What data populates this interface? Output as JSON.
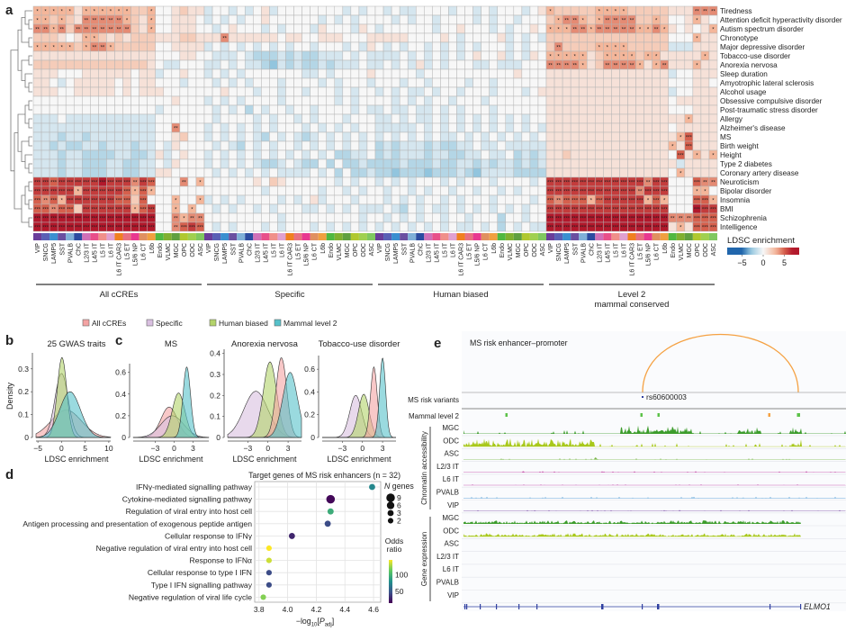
{
  "panel_labels": {
    "a": "a",
    "b": "b",
    "c": "c",
    "d": "d",
    "e": "e"
  },
  "chart_data": [
    {
      "type": "heatmap",
      "legend_title": "LDSC enrichment",
      "legend_ticks": [
        -5,
        0,
        5
      ],
      "scale_colors": {
        "neg_max": "#2166ac",
        "neg_mid": "#92c5de",
        "zero": "#f7f7f7",
        "pos_mid": "#f4b69a",
        "pos_hi": "#d6604d",
        "pos_max": "#b2182b"
      },
      "encoding": {
        "a": -3,
        "b": -2,
        "c": -1
      },
      "star_rule": {
        "3": "*",
        "4": "**",
        "5": "***"
      },
      "columns": [
        "VIP",
        "SNCG",
        "LAMP5",
        "SST",
        "PVALB",
        "ChC",
        "L2/3 IT",
        "L4/5 IT",
        "L5 IT",
        "L6 IT",
        "L6 IT CAR3",
        "L5 ET",
        "L5/6 NP",
        "L6 CT",
        "L6b",
        "Endo",
        "VLMC",
        "MGC",
        "OPC",
        "ODC",
        "ASC"
      ],
      "cell_type_colors": [
        "#6a3d9a",
        "#5a5fb5",
        "#3a8fd0",
        "#6a4fa0",
        "#7fb0d8",
        "#2b4ba0",
        "#d070b8",
        "#e8508a",
        "#f0908a",
        "#e0a0d0",
        "#f08020",
        "#e87080",
        "#e83890",
        "#e09060",
        "#f0a040",
        "#50b840",
        "#80b030",
        "#60a040",
        "#b0c830",
        "#a0d050",
        "#80c860"
      ],
      "groups": [
        {
          "label": "All cCREs",
          "sublabel": ""
        },
        {
          "label": "Specific",
          "sublabel": ""
        },
        {
          "label": "Human biased",
          "sublabel": ""
        },
        {
          "label": "Level 2",
          "sublabel": "mammal conserved"
        }
      ],
      "rows": [
        "Tiredness",
        "Attention deficit hyperactivity disorder",
        "Autism spectrum disorder",
        "Chronotype",
        "Major depressive disorder",
        "Tobacco-use disorder",
        "Anorexia nervosa",
        "Sleep duration",
        "Amyotrophic lateral sclerosis",
        "Alcohol usage",
        "Obsessive compulsive disorder",
        "Post-traumatic stress disorder",
        "Allergy",
        "Alzheimer's disease",
        "MS",
        "Birth weight",
        "Height",
        "Type 2 diabetes",
        "Coronary artery disease",
        "Neuroticism",
        "Bipolar disorder",
        "Insomnia",
        "BMI",
        "Schizophrenia",
        "Intelligence"
      ],
      "values": [
        [
          "333331333333223001211",
          "c00c0c01c00000000c0c0",
          "0c0cc0000c00c0c000c01",
          "322222333322222111444"
        ],
        [
          "332321444443213001110",
          "c0c0c001000000c0c0c00",
          "00c0c00c0000c0c00c000",
          "234432344442232001310"
        ],
        [
          "443424444444213001110",
          "0c01000c0c000c1000c10",
          "c000000c001000c0c0010",
          "333443444443343101013"
        ],
        [
          "222101332121222111221",
          "114111111011001110001",
          "1111000010c00001c0c0c",
          "222222222222222000311"
        ],
        [
          "333332344322222001111",
          "c0c0c0c0c0c00c000c0c1",
          "0c0c00c0c0c0c000c0c00",
          "242222333322222ccc111"
        ],
        [
          "111111111111111000110",
          "0ccc0cbbbcbcbbccc0c0c",
          "ccc0c0c0c0c01001c0c10",
          "333331233332331111131"
        ],
        [
          "2222222222222210cc000",
          "cc0c0ccbacbcbbcbccc0c",
          "c0c0c1c0c000cc0ccc000",
          "444431244443134111311"
        ],
        [
          "111000111111011c00100",
          "c0c0c0000000cc0c00001",
          "00000c000000000001000",
          "111111111111111c00111"
        ],
        [
          "110c01111101011000c00",
          "0c0c0c000c0000c0c000c",
          "000c00c0000c00c000000",
          "111111111111111000110"
        ],
        [
          "111001111101011100000",
          "001000c00c00c000c0c00",
          "c0c0cc0c00c000c000c01",
          "111111111111111c00111"
        ],
        [
          "000000000000000001000",
          "c0c0c0000c000000c0c00",
          "00c0c0c00c000c0000000",
          "111111111111111011111"
        ],
        [
          "000000000000000c00000",
          "0c0c0b0c00c00c0000c0c",
          "c0cc0cc0c0c000c000000",
          "111111111111111000111"
        ],
        [
          "ccc0ccccccccccc000000",
          "0c0000c0c00c0c000c000",
          "cc0c0cc0c0c0c0c0c0c00",
          "111111111111111113111"
        ],
        [
          "ccccccccccccccc004000",
          "c0c0c0c0c000c0c0c0c00",
          "ccccc0c0c0c0c0c0c0c0c",
          "111111111111111011111"
        ],
        [
          "cccbccbcccccccc001200",
          "c0c0c0cb0c0cbc0c0c0c0",
          "c0c0c0c0cc0c0c0c0c0c0",
          "111111111111111135111"
        ],
        [
          "ccbcbbccbcccbcc0c1000",
          "0c0cb0c0c00c0c0c0c0c0",
          "bcbcccbcbbcc0cc0ccccc",
          "111111111111111315111"
        ],
        [
          "cccbccbbbbccbbc1c0100",
          "c0c0c0c0c0c0c0c0bbcc0",
          "bcbcccbccbbcc0cc0bcbc",
          "112111111111111051313"
        ],
        [
          "cccbccbbbccbbcc0c1000",
          "c0c0c0cbbc0cbb0b0bbcb",
          "bbbcbbbcbbccbcbccbcbc",
          "1111111111111111c1111"
        ],
        [
          "cccbccbbbccbbcc110000",
          "0c0c0c0c0cccc0c0b0bbc",
          "bbabbbabbbcbaccccbbbb",
          "111111111111111031111"
        ],
        [
          "665666667666465000403",
          "0000001021000000c0c00",
          "c0c0c000c0c000c0000c0",
          "666666666666466000544"
        ],
        [
          "666663666665353000000",
          "0000000c000000c00c0c0",
          "0c00c0c00c00c00c0c000",
          "666666666664666000330"
        ],
        [
          "545366666655250003003",
          "c0c0c0000c0c01c000c00",
          "0c0c0c00c0c000c0000c0",
          "545553566666353000553"
        ],
        [
          "554552666666356003030",
          "0c0c00c0c000cc0c0c0cc",
          "c0cb0c0cc0c0c0c0c0c00",
          "666666666666666000766"
        ],
        [
          "777777777777777004344",
          "000000000c000000000c0",
          "0c0c0c00c00c000b00c00",
          "777777777777777444555"
        ],
        [
          "777777777777777004565",
          "0c0c000c0c000c0c0c0c0",
          "c0c0c0c0c0cc0c0b0c0cc",
          "777777777777777131555"
        ]
      ]
    },
    {
      "type": "area",
      "subtype": "density",
      "title": "25 GWAS traits",
      "xlabel": "LDSC enrichment",
      "ylabel": "Density",
      "xlim": [
        -5.4,
        10.4
      ],
      "ylim": [
        0,
        0.37
      ],
      "xticks": [
        -5,
        0,
        5,
        10
      ],
      "yticks": [
        0,
        0.1,
        0.2,
        0.3
      ],
      "series": [
        {
          "name": "All cCREs",
          "mean": 1.0,
          "sd": 3.2,
          "peak": 0.12
        },
        {
          "name": "Specific",
          "mean": 0.0,
          "sd": 1.4,
          "peak": 0.28
        },
        {
          "name": "Human biased",
          "mean": 0.1,
          "sd": 1.0,
          "peak": 0.35
        },
        {
          "name": "Mammal level 2",
          "mean": 1.8,
          "sd": 2.2,
          "peak": 0.2
        }
      ]
    },
    {
      "type": "area",
      "subtype": "density",
      "title": "MS",
      "xlabel": "LDSC enrichment",
      "ylabel": "",
      "xlim": [
        -6.5,
        5.5
      ],
      "ylim": [
        0,
        0.68
      ],
      "xticks": [
        -3,
        0,
        3
      ],
      "yticks": [
        0,
        0.2,
        0.4,
        0.6
      ],
      "series": [
        {
          "name": "All cCREs",
          "mean": -0.8,
          "sd": 1.3,
          "peak": 0.28
        },
        {
          "name": "Specific",
          "mean": -0.3,
          "sd": 1.8,
          "peak": 0.2
        },
        {
          "name": "Human biased",
          "mean": 0.7,
          "sd": 1.0,
          "peak": 0.41
        },
        {
          "name": "Mammal level 2",
          "mean": 2.0,
          "sd": 0.6,
          "peak": 0.65
        }
      ]
    },
    {
      "type": "area",
      "subtype": "density",
      "title": "Anorexia nervosa",
      "xlabel": "LDSC enrichment",
      "ylabel": "",
      "xlim": [
        -6,
        5
      ],
      "ylim": [
        0,
        0.42
      ],
      "xticks": [
        -3,
        0,
        3
      ],
      "yticks": [
        0,
        0.1,
        0.2,
        0.3,
        0.4
      ],
      "series": [
        {
          "name": "Specific",
          "mean": -1.8,
          "sd": 1.8,
          "peak": 0.22
        },
        {
          "name": "Human biased",
          "mean": 0.3,
          "sd": 1.0,
          "peak": 0.36
        },
        {
          "name": "All cCREs",
          "mean": 2.0,
          "sd": 0.8,
          "peak": 0.38
        },
        {
          "name": "Mammal level 2",
          "mean": 3.3,
          "sd": 1.1,
          "peak": 0.31
        }
      ]
    },
    {
      "type": "area",
      "subtype": "density",
      "title": "Tobacco-use disorder",
      "xlabel": "LDSC enrichment",
      "ylabel": "",
      "xlim": [
        -6,
        5
      ],
      "ylim": [
        0,
        0.72
      ],
      "xticks": [
        -3,
        0,
        3
      ],
      "yticks": [
        0,
        0.2,
        0.4,
        0.6
      ],
      "series": [
        {
          "name": "Specific",
          "mean": -1.0,
          "sd": 0.9,
          "peak": 0.37
        },
        {
          "name": "Human biased",
          "mean": 0.2,
          "sd": 0.8,
          "peak": 0.38
        },
        {
          "name": "All cCREs",
          "mean": 1.7,
          "sd": 0.5,
          "peak": 0.62
        },
        {
          "name": "Mammal level 2",
          "mean": 3.0,
          "sd": 0.45,
          "peak": 0.7
        }
      ]
    },
    {
      "type": "scatter",
      "title": "Target genes of MS risk enhancers (n = 32)",
      "xlabel_parts": [
        "−log",
        "10",
        "[",
        "P",
        "adj",
        "]"
      ],
      "xlim": [
        3.77,
        4.65
      ],
      "xticks": [
        "3.8",
        "4.0",
        "4.2",
        "4.4",
        "4.6"
      ],
      "size_legend": {
        "title_italic": "N",
        "title": " genes",
        "values": [
          9,
          6,
          3,
          2
        ]
      },
      "color_legend": {
        "title": [
          "Odds",
          "ratio"
        ],
        "ticks": [
          100,
          50
        ],
        "range": [
          15,
          145
        ]
      },
      "points": [
        {
          "label": "IFNγ-mediated signalling pathway",
          "x": 4.59,
          "n_genes": 3,
          "odds_ratio": 75
        },
        {
          "label": "Cytokine-mediated signalling pathway",
          "x": 4.3,
          "n_genes": 9,
          "odds_ratio": 18
        },
        {
          "label": "Regulation of viral entry into host cell",
          "x": 4.3,
          "n_genes": 3,
          "odds_ratio": 95
        },
        {
          "label": "Antigen processing and presentation of exogenous peptide antigen",
          "x": 4.28,
          "n_genes": 3,
          "odds_ratio": 45
        },
        {
          "label": "Cellular response to IFNγ",
          "x": 4.03,
          "n_genes": 3,
          "odds_ratio": 30
        },
        {
          "label": "Negative regulation of viral entry into host cell",
          "x": 3.87,
          "n_genes": 2,
          "odds_ratio": 145
        },
        {
          "label": "Response to IFNα",
          "x": 3.87,
          "n_genes": 2,
          "odds_ratio": 135
        },
        {
          "label": "Cellular response to type I IFN",
          "x": 3.87,
          "n_genes": 2,
          "odds_ratio": 45
        },
        {
          "label": "Type I IFN signalling pathway",
          "x": 3.87,
          "n_genes": 2,
          "odds_ratio": 45
        },
        {
          "label": "Negative regulation of viral life cycle",
          "x": 3.83,
          "n_genes": 2,
          "odds_ratio": 120
        }
      ]
    }
  ],
  "density_legend": [
    {
      "label": "All cCREs",
      "color": "#f4a3a3"
    },
    {
      "label": "Specific",
      "color": "#d9bfe0"
    },
    {
      "label": "Human biased",
      "color": "#b3d36a"
    },
    {
      "label": "Mammal level 2",
      "color": "#56c1ca"
    }
  ],
  "genome_browser": {
    "title": "MS risk enhancer–promoter",
    "arc_color": "#f5a142",
    "variant_label": "MS risk variants",
    "variant_id": "rs60600003",
    "conserved_label": "Mammal level 2",
    "conserved_colors": {
      "normal": "#5cc24a",
      "highlight": "#f5a142"
    },
    "chromatin_label": "Chromatin accessibility",
    "expression_label": "Gene expression",
    "chromatin_tracks": [
      {
        "label": "MGC",
        "color": "#3c9c2c",
        "signal": 1.0
      },
      {
        "label": "ODC",
        "color": "#a8c81a",
        "signal": 1.0
      },
      {
        "label": "ASC",
        "color": "#7ab84a",
        "signal": 0.25
      },
      {
        "label": "L2/3 IT",
        "color": "#c040a0",
        "signal": 0.3
      },
      {
        "label": "L6 IT",
        "color": "#c868b8",
        "signal": 0.2
      },
      {
        "label": "PVALB",
        "color": "#3a90d0",
        "signal": 0.25
      },
      {
        "label": "VIP",
        "color": "#7040a0",
        "signal": 0.2
      }
    ],
    "expression_tracks": [
      {
        "label": "MGC",
        "color": "#3c9c2c",
        "signal": 0.7
      },
      {
        "label": "ODC",
        "color": "#a8c81a",
        "signal": 0.7
      },
      {
        "label": "ASC",
        "color": "#7ab84a",
        "signal": 0
      },
      {
        "label": "L2/3 IT",
        "color": "#c040a0",
        "signal": 0
      },
      {
        "label": "L6 IT",
        "color": "#c868b8",
        "signal": 0
      },
      {
        "label": "PVALB",
        "color": "#3a90d0",
        "signal": 0
      },
      {
        "label": "VIP",
        "color": "#7040a0",
        "signal": 0
      }
    ],
    "gene": "ELMO1",
    "gene_color": "#3040a0"
  }
}
